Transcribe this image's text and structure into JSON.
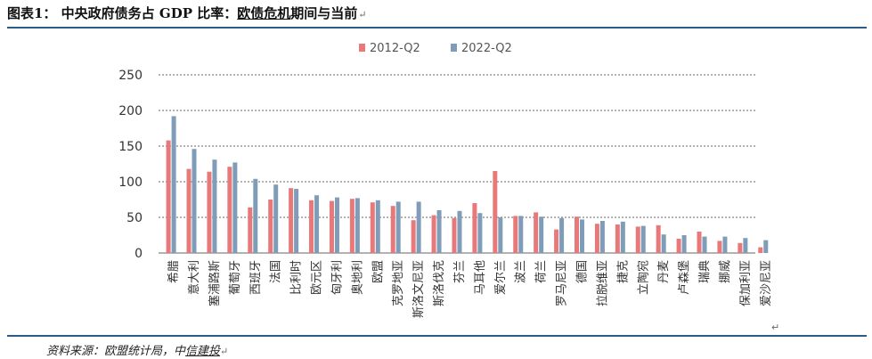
{
  "header": {
    "title_prefix": "图表1：  中央政府债务占 GDP 比率：",
    "title_underlined": "欧债危机",
    "title_suffix": "期间与当前",
    "return_mark": "↵"
  },
  "footer": {
    "source_prefix": "资料来源：欧盟统计局，中",
    "source_underlined": "信建投",
    "return_mark": "↵"
  },
  "colors": {
    "series_2012": "#e8797a",
    "series_2022": "#7f9db8",
    "rule": "#2b5b86",
    "grid": "#333333"
  },
  "chart_data": {
    "type": "bar",
    "title": "",
    "xlabel": "",
    "ylabel": "",
    "ylim": [
      0,
      250
    ],
    "yticks": [
      0,
      50,
      100,
      150,
      200,
      250
    ],
    "grid": "dashed horizontal",
    "legend_position": "top-center",
    "categories": [
      "希腊",
      "意大利",
      "塞浦路斯",
      "葡萄牙",
      "西班牙",
      "法国",
      "比利时",
      "欧元区",
      "匈牙利",
      "奥地利",
      "欧盟",
      "克罗地亚",
      "斯洛文尼亚",
      "斯洛伐克",
      "芬兰",
      "马耳他",
      "爱尔兰",
      "波兰",
      "荷兰",
      "罗马尼亚",
      "德国",
      "拉脱维亚",
      "捷克",
      "立陶宛",
      "丹麦",
      "卢森堡",
      "瑞典",
      "挪威",
      "保加利亚",
      "爱沙尼亚"
    ],
    "series": [
      {
        "name": "2012-Q2",
        "values": [
          158,
          118,
          114,
          121,
          64,
          75,
          91,
          74,
          73,
          76,
          71,
          66,
          46,
          53,
          49,
          70,
          115,
          52,
          57,
          33,
          51,
          41,
          40,
          37,
          39,
          20,
          30,
          17,
          14,
          8
        ]
      },
      {
        "name": "2022-Q2",
        "values": [
          192,
          146,
          131,
          127,
          104,
          96,
          90,
          81,
          78,
          77,
          74,
          72,
          72,
          60,
          59,
          56,
          50,
          52,
          51,
          49,
          47,
          45,
          44,
          38,
          26,
          25,
          23,
          23,
          21,
          18
        ]
      }
    ]
  }
}
